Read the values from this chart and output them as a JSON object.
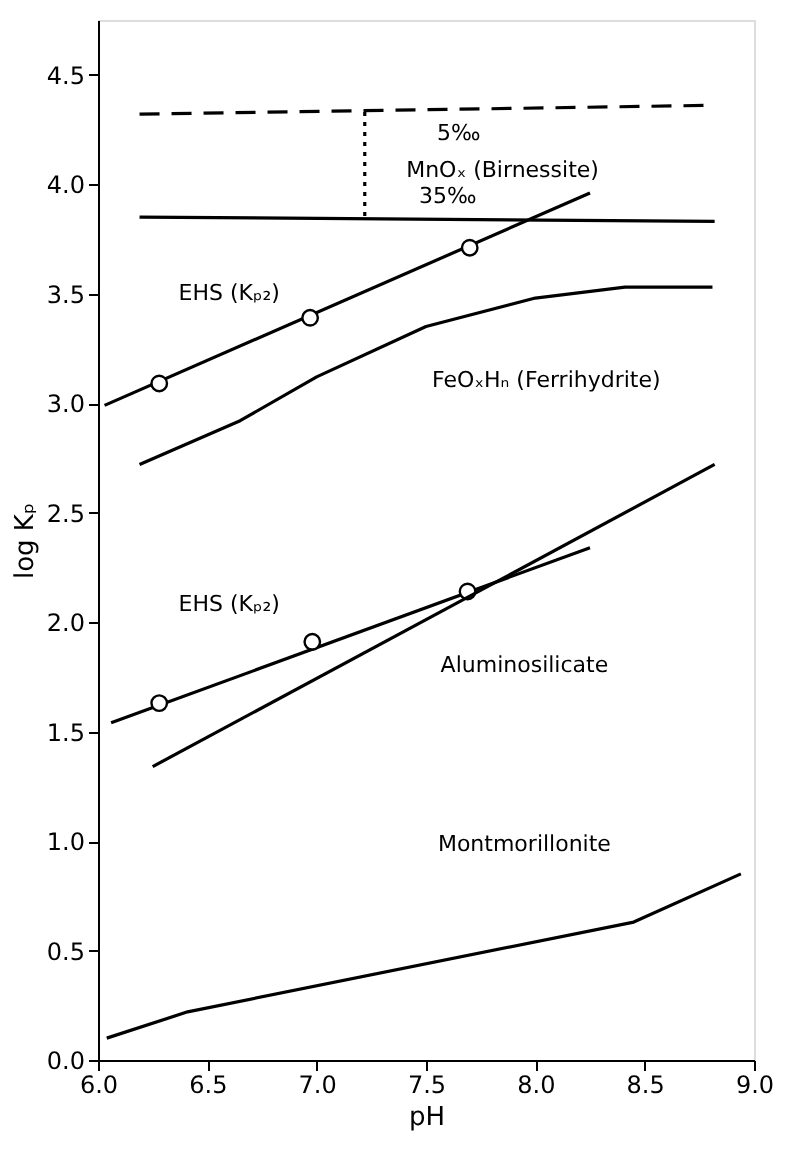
{
  "chart_data": {
    "type": "line",
    "xlabel": "pH",
    "ylabel": "log Kₚ",
    "xlim": [
      6.0,
      9.0
    ],
    "xticks": [
      {
        "value": 6,
        "label": "6.0"
      },
      6.5,
      {
        "value": 7,
        "label": "7.0"
      },
      7.5,
      {
        "value": 8,
        "label": "8.0"
      },
      8.5,
      {
        "value": 9,
        "label": "9.0"
      }
    ],
    "ylim": [
      0.0,
      4.75
    ],
    "yticks": [
      {
        "value": 0,
        "label": "0.0"
      },
      0.5,
      {
        "value": 1,
        "label": "1.0"
      },
      1.5,
      {
        "value": 2,
        "label": "2.0"
      },
      2.5,
      {
        "value": 3,
        "label": "3.0"
      },
      3.5,
      {
        "value": 4,
        "label": "4.0"
      },
      4.5
    ],
    "grid": false,
    "series": [
      {
        "line_style": "dashed",
        "color": "#000000",
        "x": [
          6.19,
          8.79
        ],
        "values": [
          4.32,
          4.36
        ]
      },
      {
        "line_style": "solid",
        "color": "#000000",
        "x": [
          6.19,
          8.82
        ],
        "values": [
          3.85,
          3.83
        ]
      },
      {
        "line_style": "dotted",
        "color": "#000000",
        "x": [
          7.22,
          7.22
        ],
        "values": [
          4.33,
          3.85
        ]
      },
      {
        "line_style": "solid",
        "color": "#000000",
        "x": [
          6.03,
          8.25
        ],
        "values": [
          2.99,
          3.96
        ]
      },
      {
        "type": "scatter",
        "marker": "circle",
        "color": "#000000",
        "x": [
          6.28,
          6.97,
          7.7
        ],
        "values": [
          3.09,
          3.39,
          3.71
        ]
      },
      {
        "line_style": "solid",
        "color": "#000000",
        "x": [
          6.19,
          6.65,
          7.0,
          7.5,
          8.0,
          8.41,
          8.81
        ],
        "values": [
          2.72,
          2.92,
          3.12,
          3.35,
          3.48,
          3.53,
          3.53
        ]
      },
      {
        "line_style": "solid",
        "color": "#000000",
        "x": [
          6.06,
          8.25
        ],
        "values": [
          1.54,
          2.34
        ]
      },
      {
        "type": "scatter",
        "marker": "circle",
        "color": "#000000",
        "x": [
          6.28,
          6.98,
          7.69
        ],
        "values": [
          1.63,
          1.91,
          2.14
        ]
      },
      {
        "line_style": "solid",
        "color": "#000000",
        "x": [
          6.25,
          8.82
        ],
        "values": [
          1.34,
          2.72
        ]
      },
      {
        "line_style": "solid",
        "color": "#000000",
        "x": [
          6.04,
          6.41,
          8.45,
          8.94
        ],
        "values": [
          0.1,
          0.22,
          0.63,
          0.85
        ]
      }
    ],
    "annotations": [
      "5‰",
      "MnOₓ (Birnessite)",
      "35‰",
      "EHS (Kₚ₂)",
      "FeOₓHₙ (Ferrihydrite)",
      "EHS (Kₚ₂)",
      "Aluminosilicate",
      "Montmorillonite"
    ]
  }
}
